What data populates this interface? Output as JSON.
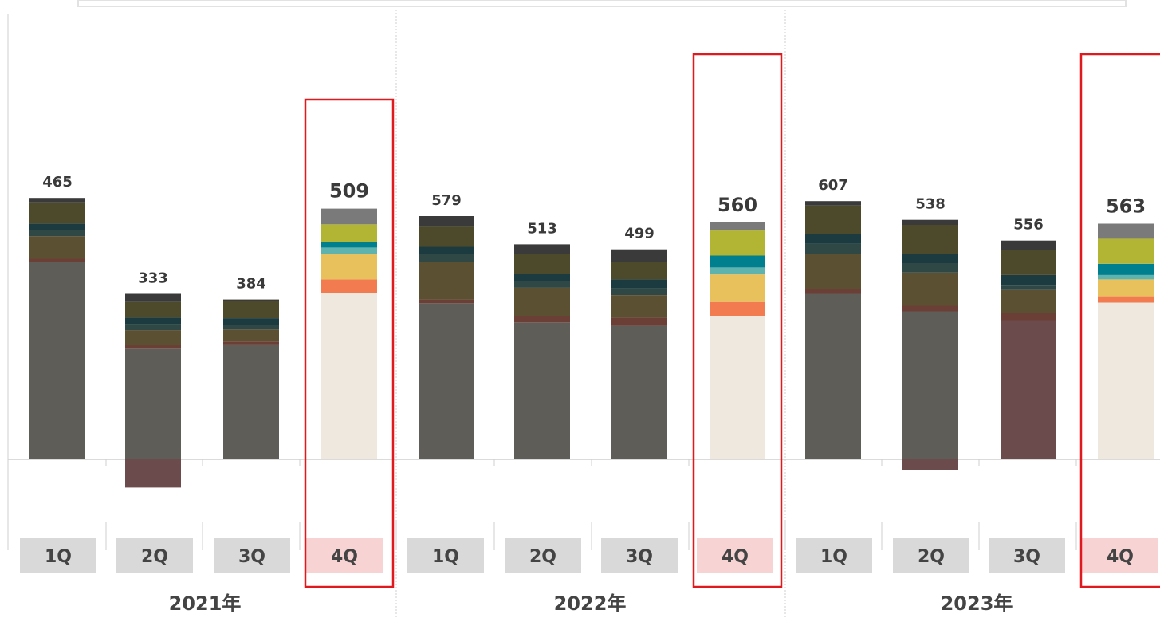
{
  "chart_data": {
    "type": "bar",
    "stacked": true,
    "groups": [
      {
        "label": "2021年",
        "quarters": [
          "1Q",
          "2Q",
          "3Q",
          "4Q"
        ]
      },
      {
        "label": "2022年",
        "quarters": [
          "1Q",
          "2Q",
          "3Q",
          "4Q"
        ]
      },
      {
        "label": "2023年",
        "quarters": [
          "1Q",
          "2Q",
          "3Q",
          "4Q"
        ]
      }
    ],
    "totals": [
      465,
      333,
      384,
      509,
      579,
      513,
      499,
      560,
      607,
      538,
      556,
      563
    ],
    "highlight_quarter": "4Q",
    "colors": {
      "dim_base": "#5e5d58",
      "dim_negative": "#6b4b4b",
      "dim_top": "#3a3a3a",
      "highlight_base": "#efe8de",
      "highlight_frame": "#e0191e",
      "highlight_tick_bg": "#f8d3d3",
      "tick_bg": "#d9d9d9",
      "grid": "#cfcfcf"
    },
    "bars": [
      {
        "segments": [
          {
            "value": 315,
            "color": "#5e5d58"
          },
          {
            "value": 5,
            "color": "#6b3f36"
          },
          {
            "value": 36,
            "color": "#5c5032"
          },
          {
            "value": 10,
            "color": "#2f4846"
          },
          {
            "value": 10,
            "color": "#1b3b40"
          },
          {
            "value": 34,
            "color": "#4c4a2a"
          },
          {
            "value": 7,
            "color": "#3a3a3a"
          }
        ],
        "negative": 0
      },
      {
        "segments": [
          {
            "value": 176,
            "color": "#5e5d58"
          },
          {
            "value": 6,
            "color": "#6b3f36"
          },
          {
            "value": 24,
            "color": "#5c5032"
          },
          {
            "value": 10,
            "color": "#2f4846"
          },
          {
            "value": 10,
            "color": "#1b3b40"
          },
          {
            "value": 25,
            "color": "#4c4a2a"
          },
          {
            "value": 13,
            "color": "#3a3a3a"
          }
        ],
        "negative": 45
      },
      {
        "segments": [
          {
            "value": 182,
            "color": "#5e5d58"
          },
          {
            "value": 6,
            "color": "#6b3f36"
          },
          {
            "value": 19,
            "color": "#5c5032"
          },
          {
            "value": 8,
            "color": "#2f4846"
          },
          {
            "value": 10,
            "color": "#1b3b40"
          },
          {
            "value": 27,
            "color": "#4c4a2a"
          },
          {
            "value": 3,
            "color": "#3a3a3a"
          }
        ],
        "negative": 0
      },
      {
        "segments": [
          {
            "value": 265,
            "color": "#efe8de"
          },
          {
            "value": 22,
            "color": "#f27b50"
          },
          {
            "value": 40,
            "color": "#e8c15d"
          },
          {
            "value": 11,
            "color": "#5fb3ae"
          },
          {
            "value": 9,
            "color": "#007f8f"
          },
          {
            "value": 28,
            "color": "#b2b434"
          },
          {
            "value": 25,
            "color": "#7a7a7a"
          }
        ],
        "negative": 0
      },
      {
        "segments": [
          {
            "value": 249,
            "color": "#5e5d58"
          },
          {
            "value": 6,
            "color": "#6b3f36"
          },
          {
            "value": 60,
            "color": "#5c5032"
          },
          {
            "value": 13,
            "color": "#2f4846"
          },
          {
            "value": 11,
            "color": "#1b3b40"
          },
          {
            "value": 32,
            "color": "#4c4a2a"
          },
          {
            "value": 17,
            "color": "#3a3a3a"
          }
        ],
        "negative": 0
      },
      {
        "segments": [
          {
            "value": 218,
            "color": "#5e5d58"
          },
          {
            "value": 11,
            "color": "#6b3f36"
          },
          {
            "value": 45,
            "color": "#5c5032"
          },
          {
            "value": 10,
            "color": "#2f4846"
          },
          {
            "value": 12,
            "color": "#1b3b40"
          },
          {
            "value": 31,
            "color": "#4c4a2a"
          },
          {
            "value": 16,
            "color": "#3a3a3a"
          }
        ],
        "negative": 0
      },
      {
        "segments": [
          {
            "value": 213,
            "color": "#5e5d58"
          },
          {
            "value": 13,
            "color": "#6b3f36"
          },
          {
            "value": 36,
            "color": "#5c5032"
          },
          {
            "value": 11,
            "color": "#2f4846"
          },
          {
            "value": 14,
            "color": "#1b3b40"
          },
          {
            "value": 28,
            "color": "#4c4a2a"
          },
          {
            "value": 20,
            "color": "#3a3a3a"
          }
        ],
        "negative": 0
      },
      {
        "segments": [
          {
            "value": 229,
            "color": "#efe8de"
          },
          {
            "value": 22,
            "color": "#f27b50"
          },
          {
            "value": 44,
            "color": "#e8c15d"
          },
          {
            "value": 11,
            "color": "#5fb3ae"
          },
          {
            "value": 19,
            "color": "#007f8f"
          },
          {
            "value": 40,
            "color": "#b2b434"
          },
          {
            "value": 13,
            "color": "#7a7a7a"
          }
        ],
        "negative": 0
      },
      {
        "segments": [
          {
            "value": 264,
            "color": "#5e5d58"
          },
          {
            "value": 7,
            "color": "#6b3f36"
          },
          {
            "value": 56,
            "color": "#5c5032"
          },
          {
            "value": 17,
            "color": "#2f4846"
          },
          {
            "value": 16,
            "color": "#1b3b40"
          },
          {
            "value": 45,
            "color": "#4c4a2a"
          },
          {
            "value": 7,
            "color": "#3a3a3a"
          }
        ],
        "negative": 0
      },
      {
        "segments": [
          {
            "value": 236,
            "color": "#5e5d58"
          },
          {
            "value": 9,
            "color": "#6b3f36"
          },
          {
            "value": 53,
            "color": "#5c5032"
          },
          {
            "value": 15,
            "color": "#2f4846"
          },
          {
            "value": 15,
            "color": "#1b3b40"
          },
          {
            "value": 46,
            "color": "#4c4a2a"
          },
          {
            "value": 8,
            "color": "#3a3a3a"
          }
        ],
        "negative": 17
      },
      {
        "segments": [
          {
            "value": 222,
            "color": "#6b4b4b"
          },
          {
            "value": 12,
            "color": "#6b3f36"
          },
          {
            "value": 36,
            "color": "#5c5032"
          },
          {
            "value": 7,
            "color": "#2f4846"
          },
          {
            "value": 17,
            "color": "#1b3b40"
          },
          {
            "value": 40,
            "color": "#4c4a2a"
          },
          {
            "value": 15,
            "color": "#3a3a3a"
          }
        ],
        "negative": 0
      },
      {
        "segments": [
          {
            "value": 250,
            "color": "#efe8de"
          },
          {
            "value": 10,
            "color": "#f27b50"
          },
          {
            "value": 27,
            "color": "#e8c15d"
          },
          {
            "value": 7,
            "color": "#5fb3ae"
          },
          {
            "value": 18,
            "color": "#007f8f"
          },
          {
            "value": 40,
            "color": "#b2b434"
          },
          {
            "value": 24,
            "color": "#7a7a7a"
          }
        ],
        "negative": 0
      }
    ]
  }
}
